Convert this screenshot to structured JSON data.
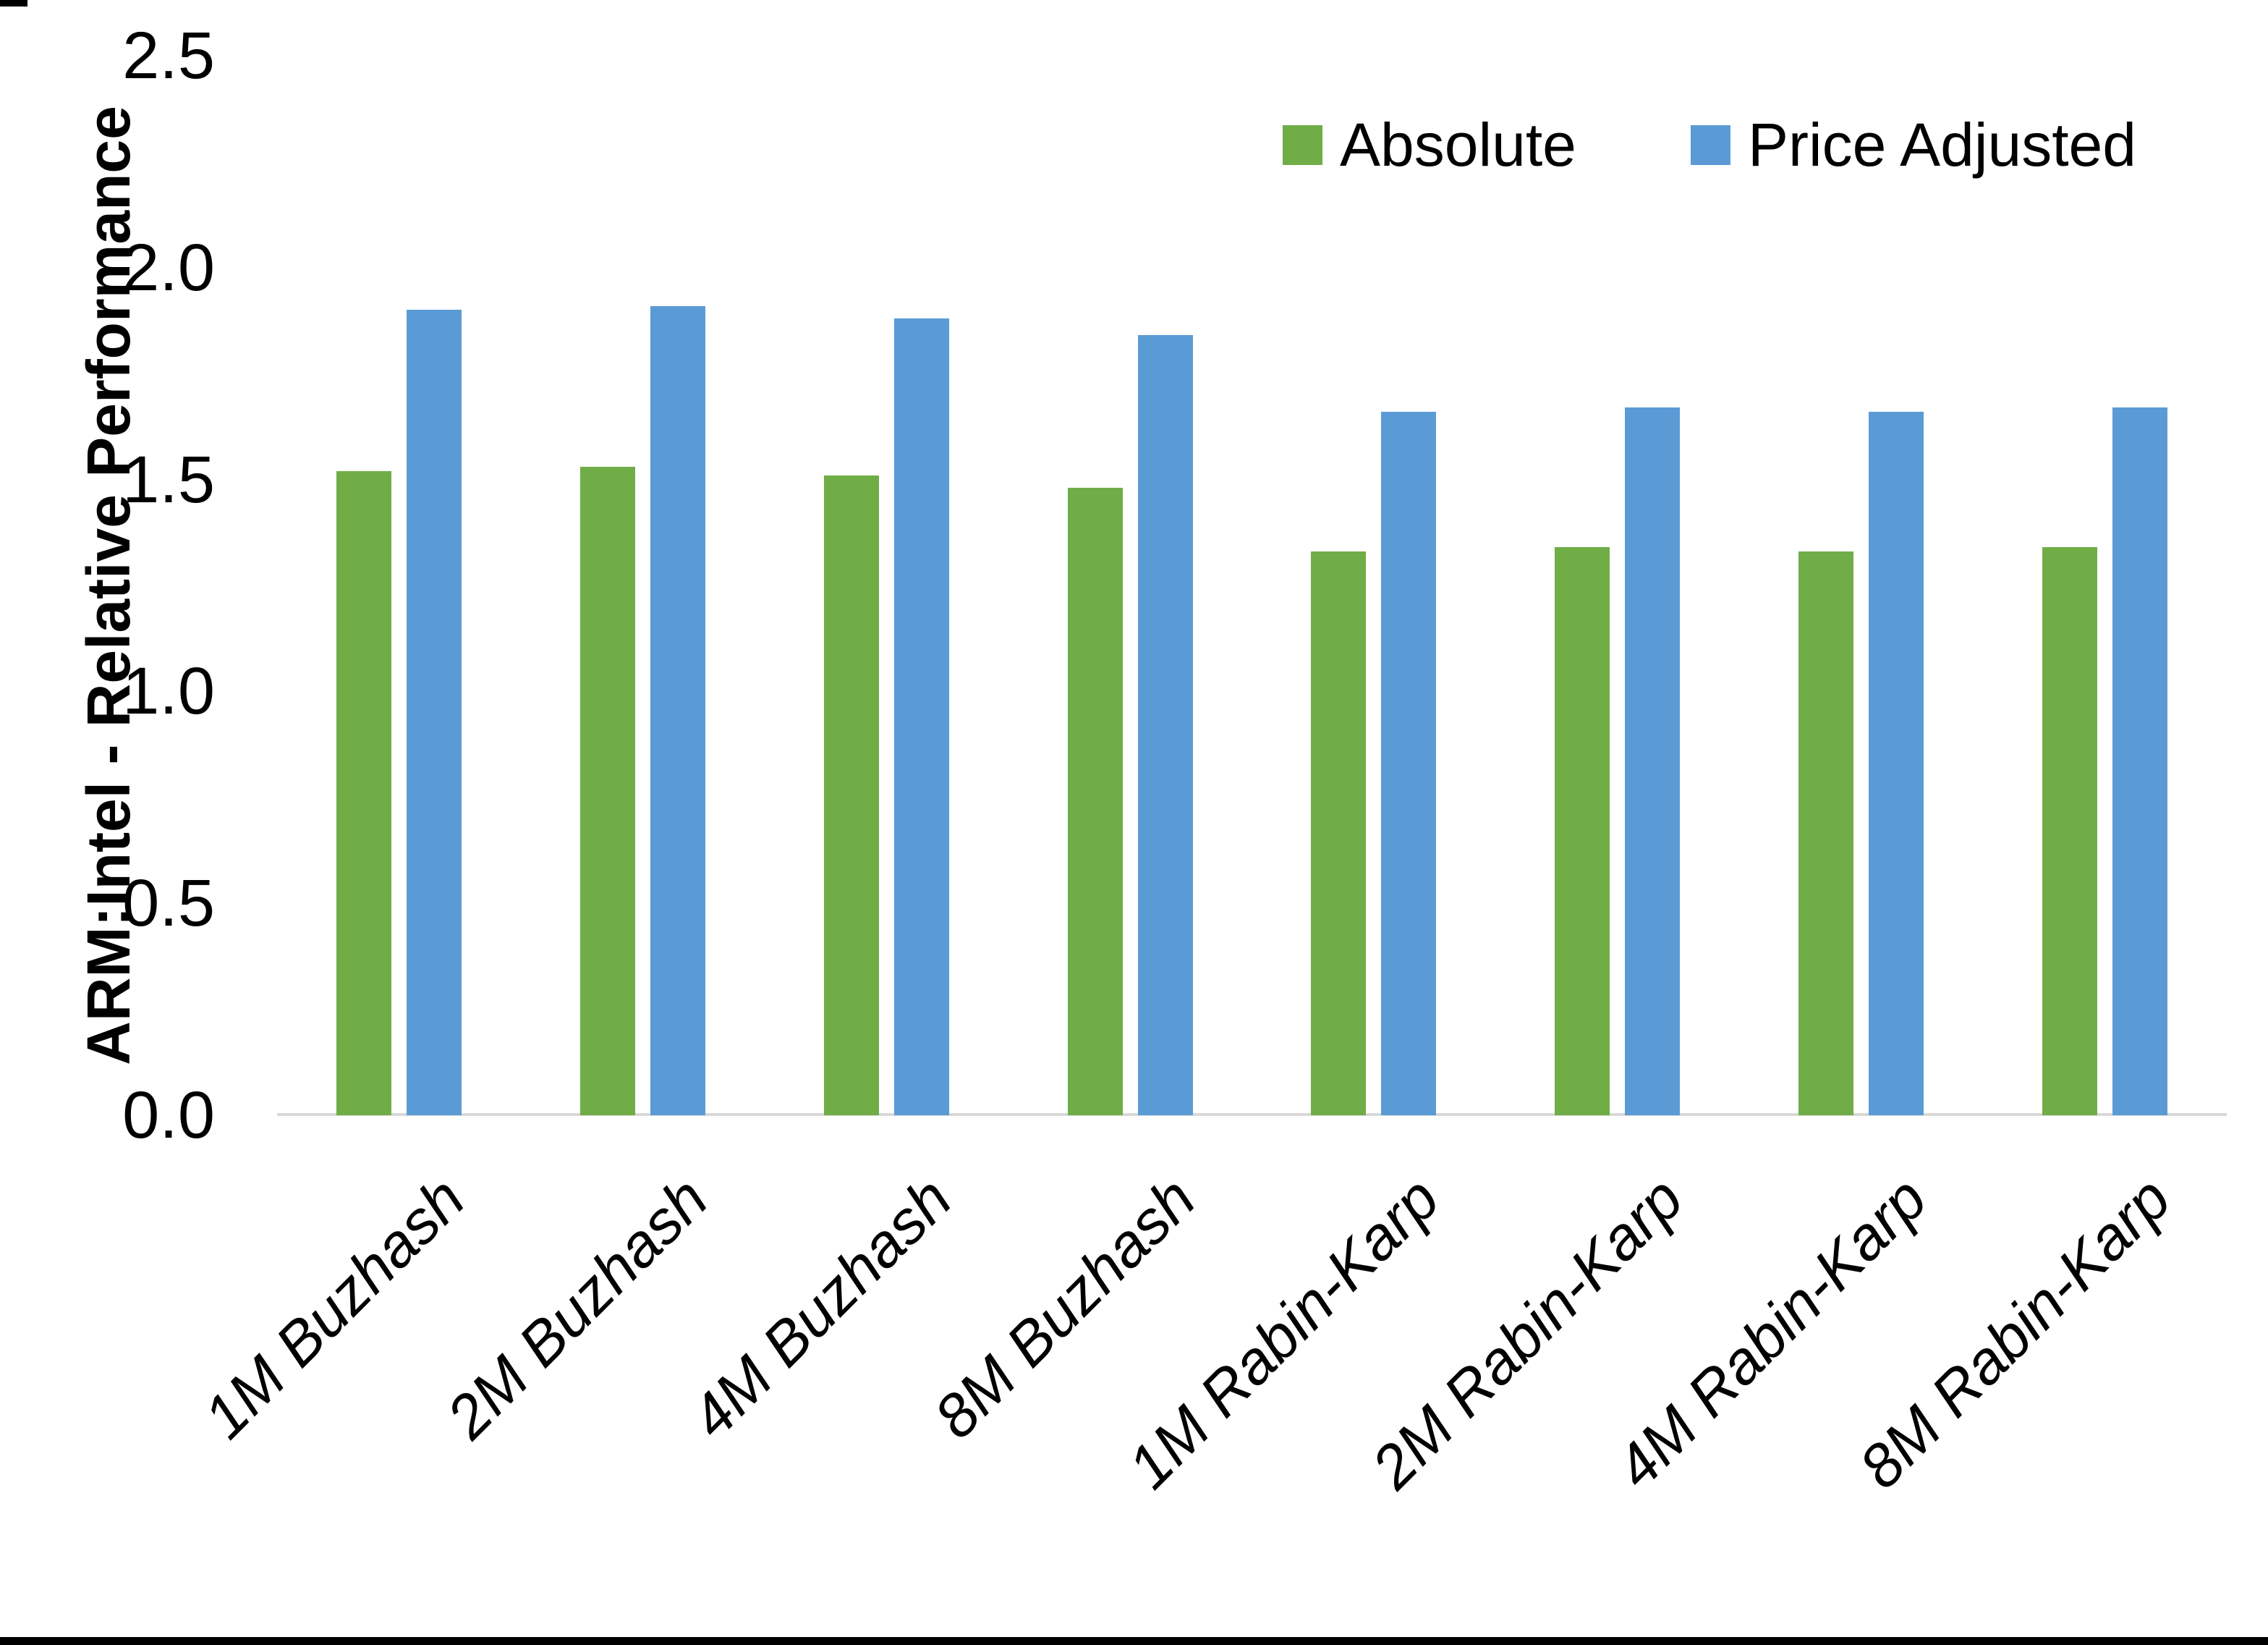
{
  "chart_data": {
    "type": "bar",
    "title": "",
    "xlabel": "",
    "ylabel": "ARM:Intel - Relative Performance",
    "ylim": [
      0,
      2.5
    ],
    "yticks": [
      "0.0",
      "0.5",
      "1.0",
      "1.5",
      "2.0",
      "2.5"
    ],
    "grid": false,
    "legend_position": "top-right",
    "categories": [
      "1M Buzhash",
      "2M Buzhash",
      "4M Buzhash",
      "8M Buzhash",
      "1M Rabin-Karp",
      "2M Rabin-Karp",
      "4M Rabin-Karp",
      "8M Rabin-Karp"
    ],
    "series": [
      {
        "name": "Absolute",
        "color": "#70AD47",
        "values": [
          1.52,
          1.53,
          1.51,
          1.48,
          1.33,
          1.34,
          1.33,
          1.34
        ]
      },
      {
        "name": "Price Adjusted",
        "color": "#5B9BD5",
        "values": [
          1.9,
          1.91,
          1.88,
          1.84,
          1.66,
          1.67,
          1.66,
          1.67
        ]
      }
    ]
  },
  "colors": {
    "background": "#FFFFFF",
    "axis_line": "#D9D9D9",
    "text": "#000000",
    "frame": "#000000"
  }
}
